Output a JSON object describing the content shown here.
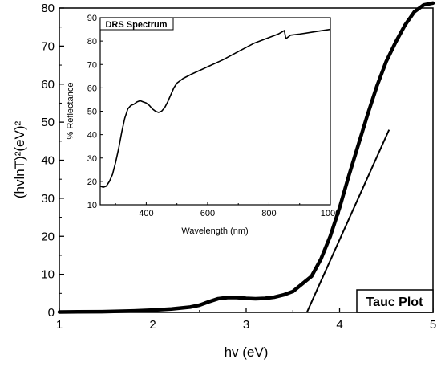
{
  "chart_data": [
    {
      "type": "line",
      "title": "Tauc Plot",
      "xlabel": "hv (eV)",
      "ylabel": "(hvlnT)²(eV)²",
      "xlim": [
        1,
        5
      ],
      "ylim": [
        0,
        80
      ],
      "x_ticks": [
        "1",
        "2",
        "3",
        "4",
        "5"
      ],
      "y_ticks": [
        "0",
        "10",
        "20",
        "30",
        "40",
        "50",
        "60",
        "70",
        "80"
      ],
      "series": [
        {
          "x": [
            1.0,
            1.2,
            1.5,
            1.8,
            2.0,
            2.2,
            2.4,
            2.5,
            2.6,
            2.7,
            2.8,
            2.9,
            3.0,
            3.1,
            3.2,
            3.3,
            3.4,
            3.5,
            3.6,
            3.7,
            3.8,
            3.9,
            4.0,
            4.1,
            4.2,
            4.3,
            4.4,
            4.5,
            4.6,
            4.7,
            4.8,
            4.9,
            5.0
          ],
          "y": [
            0.1,
            0.15,
            0.2,
            0.4,
            0.6,
            0.9,
            1.4,
            1.9,
            2.8,
            3.6,
            3.9,
            3.9,
            3.7,
            3.6,
            3.7,
            4.0,
            4.6,
            5.5,
            7.5,
            9.5,
            14.0,
            20.0,
            27.5,
            36.0,
            44.0,
            52.0,
            59.5,
            66.0,
            71.0,
            75.5,
            79.0,
            80.8,
            81.3
          ]
        },
        {
          "x": [
            3.65,
            4.53
          ],
          "y": [
            0,
            48
          ]
        }
      ]
    },
    {
      "type": "line",
      "title": "DRS Spectrum",
      "xlabel": "Wavelength (nm)",
      "ylabel": "% Reflectance",
      "xlim": [
        250,
        1000
      ],
      "ylim": [
        10,
        90
      ],
      "x_ticks": [
        "400",
        "600",
        "800",
        "1000"
      ],
      "y_ticks": [
        "10",
        "20",
        "30",
        "40",
        "50",
        "60",
        "70",
        "80",
        "90"
      ],
      "series": [
        {
          "x": [
            250,
            260,
            270,
            280,
            290,
            300,
            310,
            320,
            330,
            340,
            350,
            360,
            370,
            380,
            390,
            400,
            410,
            420,
            430,
            440,
            450,
            460,
            470,
            480,
            490,
            500,
            520,
            550,
            600,
            650,
            700,
            750,
            800,
            830,
            850,
            855,
            860,
            870,
            900,
            950,
            1000
          ],
          "y": [
            18,
            17.5,
            18,
            20,
            23,
            28,
            34,
            41,
            47,
            51,
            52.5,
            53,
            54,
            54.5,
            54,
            53.5,
            52.5,
            51,
            50,
            49.5,
            50,
            51.5,
            54,
            57,
            60,
            62,
            64,
            66,
            69,
            72,
            75.5,
            79,
            81.5,
            83,
            84.5,
            81,
            81.5,
            82.5,
            83,
            84,
            85
          ]
        }
      ]
    }
  ]
}
